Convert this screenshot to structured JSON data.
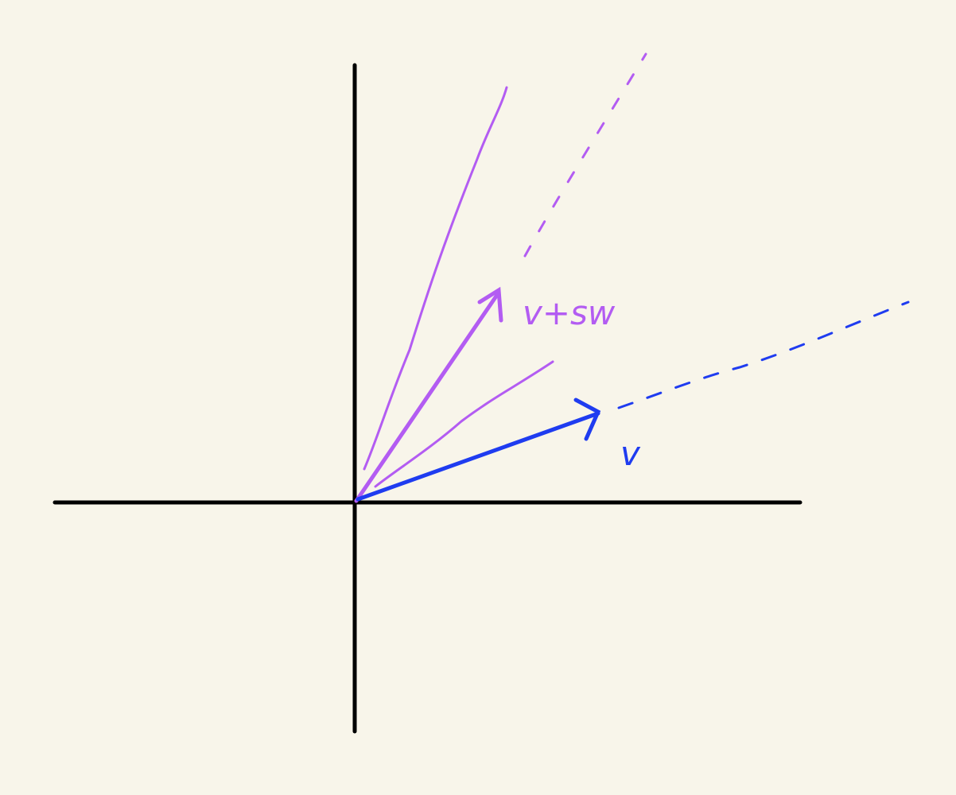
{
  "colors": {
    "background": "#f8f5ea",
    "axes": "#000000",
    "vector_v": "#1f3cf0",
    "vector_sum": "#b35cf2"
  },
  "labels": {
    "v": "v",
    "v_plus_sw": "v+sw"
  }
}
